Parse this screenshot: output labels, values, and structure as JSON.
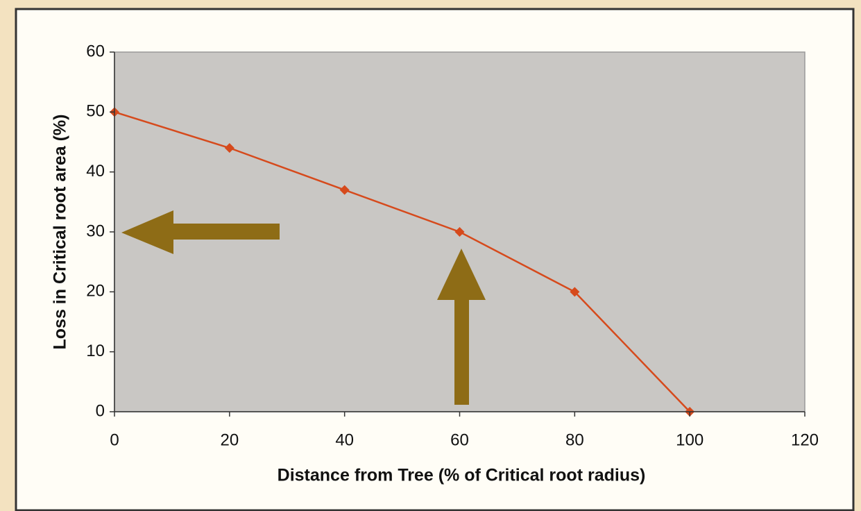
{
  "chart_data": {
    "type": "line",
    "x_label": "Distance from Tree (% of Critical root radius)",
    "y_label": "Loss in Critical root area (%)",
    "x": [
      0,
      20,
      40,
      60,
      80,
      100
    ],
    "series": [
      {
        "color": "#d64a1c",
        "values": [
          50,
          44,
          37,
          30,
          20,
          0
        ]
      }
    ],
    "xlim": [
      0,
      120
    ],
    "xticks": [
      0,
      20,
      40,
      60,
      80,
      100,
      120
    ],
    "ylim": [
      0,
      60
    ],
    "yticks": [
      0,
      10,
      20,
      30,
      40,
      50,
      60
    ],
    "grid": false
  }
}
